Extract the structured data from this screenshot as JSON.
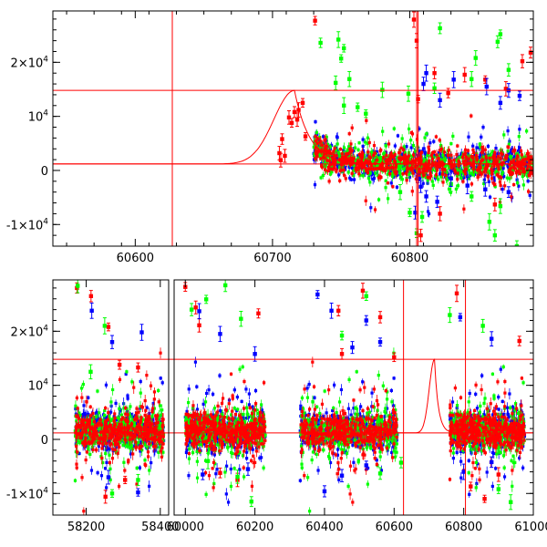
{
  "chart_data": [
    {
      "type": "scatter",
      "panel": "top",
      "title": "",
      "xlabel": "",
      "ylabel": "",
      "xlim": [
        60540,
        60890
      ],
      "ylim": [
        -14000,
        29500
      ],
      "x_ticks": [
        60600,
        60700,
        60800
      ],
      "x_tick_labels": [
        "60600",
        "60700",
        "60800"
      ],
      "y_ticks": [
        {
          "value": -10000,
          "mantissa": "-1×10",
          "exp": "4"
        },
        {
          "value": 0,
          "mantissa": "0",
          "exp": ""
        },
        {
          "value": 10000,
          "mantissa": "10",
          "exp": "4"
        },
        {
          "value": 20000,
          "mantissa": "2×10",
          "exp": "4"
        }
      ],
      "series_colors": {
        "red": "#ff0000",
        "green": "#00ff00",
        "blue": "#0000ff"
      },
      "reference_lines": {
        "horizontal": [
          1200,
          14800
        ],
        "vertical": [
          60627,
          60805,
          60806
        ]
      },
      "model_curve": {
        "baseline": 1200,
        "peak": 14800,
        "peak_x": 60716,
        "rise_width": 15,
        "decay_tau": 11
      },
      "series": [
        {
          "name": "red",
          "color": "#ff0000",
          "points": [
            [
              60705,
              3200
            ],
            [
              60706,
              1900
            ],
            [
              60707,
              5800
            ],
            [
              60709,
              2700
            ],
            [
              60712,
              9800
            ],
            [
              60714,
              8800
            ],
            [
              60716,
              10800
            ],
            [
              60718,
              9400
            ],
            [
              60719,
              11200
            ],
            [
              60722,
              12500
            ],
            [
              60724,
              6300
            ],
            [
              60731,
              27700
            ],
            [
              60803,
              27900
            ],
            [
              60805,
              24000
            ],
            [
              60806,
              13200
            ],
            [
              60818,
              18000
            ],
            [
              60828,
              14300
            ],
            [
              60840,
              17700
            ],
            [
              60855,
              16800
            ],
            [
              60870,
              15100
            ],
            [
              60882,
              20200
            ],
            [
              60888,
              21800
            ],
            [
              60822,
              -8000
            ],
            [
              60808,
              -12000
            ],
            [
              60862,
              -6300
            ]
          ]
        },
        {
          "name": "green",
          "color": "#00ff00",
          "points": [
            [
              60735,
              23600
            ],
            [
              60748,
              24200
            ],
            [
              60752,
              22600
            ],
            [
              60750,
              20700
            ],
            [
              60746,
              16200
            ],
            [
              60756,
              16900
            ],
            [
              60752,
              12000
            ],
            [
              60762,
              11700
            ],
            [
              60768,
              10500
            ],
            [
              60780,
              14900
            ],
            [
              60799,
              14200
            ],
            [
              60818,
              15200
            ],
            [
              60822,
              26300
            ],
            [
              60845,
              16900
            ],
            [
              60848,
              20800
            ],
            [
              60864,
              23800
            ],
            [
              60866,
              25200
            ],
            [
              60872,
              18600
            ],
            [
              60793,
              -4000
            ],
            [
              60800,
              -7800
            ],
            [
              60830,
              -2500
            ],
            [
              60845,
              -4800
            ],
            [
              60858,
              -9500
            ],
            [
              60866,
              -6600
            ],
            [
              60862,
              -12000
            ],
            [
              60878,
              -14000
            ],
            [
              60809,
              -8600
            ],
            [
              60805,
              -11600
            ]
          ]
        },
        {
          "name": "blue",
          "color": "#0000ff",
          "points": [
            [
              60810,
              16000
            ],
            [
              60812,
              18000
            ],
            [
              60822,
              13000
            ],
            [
              60832,
              16800
            ],
            [
              60856,
              15500
            ],
            [
              60866,
              12500
            ],
            [
              60872,
              14800
            ],
            [
              60880,
              13800
            ],
            [
              60806,
              -1500
            ],
            [
              60808,
              -3000
            ],
            [
              60812,
              -4800
            ],
            [
              60820,
              -5800
            ],
            [
              60830,
              -1500
            ],
            [
              60842,
              -2800
            ],
            [
              60855,
              -3500
            ],
            [
              60872,
              -4000
            ],
            [
              60804,
              -7800
            ]
          ]
        }
      ]
    },
    {
      "type": "scatter",
      "panel": "bottom",
      "title": "",
      "xlabel": "",
      "ylabel": "",
      "xlim": [
        58110,
        61000
      ],
      "ylim": [
        -14000,
        29500
      ],
      "axis_break": {
        "left_segment": [
          58110,
          58430
        ],
        "right_segment": [
          59960,
          61000
        ]
      },
      "x_ticks": [
        58200,
        58400,
        60000,
        60200,
        60400,
        60600,
        60800,
        61000
      ],
      "x_tick_labels": [
        "58200",
        "58400",
        "60000",
        "60200",
        "60400",
        "60600",
        "60800",
        "61000"
      ],
      "y_ticks": [
        {
          "value": -10000,
          "mantissa": "-1×10",
          "exp": "4"
        },
        {
          "value": 0,
          "mantissa": "0",
          "exp": ""
        },
        {
          "value": 10000,
          "mantissa": "10",
          "exp": "4"
        },
        {
          "value": 20000,
          "mantissa": "2×10",
          "exp": "4"
        }
      ],
      "series_colors": {
        "red": "#ff0000",
        "green": "#00ff00",
        "blue": "#0000ff"
      },
      "reference_lines": {
        "horizontal": [
          1200,
          14800
        ],
        "vertical": [
          60627,
          60805
        ]
      },
      "model_curve": {
        "baseline": 1200,
        "peak": 14800,
        "peak_x": 60716,
        "rise_width": 15,
        "decay_tau": 11
      },
      "seasons": [
        [
          58170,
          58410
        ],
        [
          60000,
          60230
        ],
        [
          60330,
          60610
        ],
        [
          60760,
          60975
        ]
      ],
      "series": [
        {
          "name": "red",
          "color": "#ff0000",
          "points": [
            [
              58213,
              26500
            ],
            [
              58260,
              20800
            ],
            [
              58290,
              13800
            ],
            [
              58340,
              13300
            ],
            [
              58175,
              28000
            ],
            [
              58252,
              -10600
            ],
            [
              58305,
              -7500
            ],
            [
              60000,
              28200
            ],
            [
              60030,
              24400
            ],
            [
              60040,
              21100
            ],
            [
              60100,
              -6200
            ],
            [
              60150,
              -7500
            ],
            [
              60210,
              23300
            ],
            [
              60440,
              23800
            ],
            [
              60450,
              15800
            ],
            [
              60510,
              27500
            ],
            [
              60560,
              22600
            ],
            [
              60600,
              15200
            ],
            [
              60780,
              27000
            ],
            [
              60820,
              -8700
            ],
            [
              60860,
              -11000
            ],
            [
              60900,
              -6500
            ],
            [
              60960,
              18200
            ]
          ]
        },
        {
          "name": "green",
          "color": "#00ff00",
          "points": [
            [
              58177,
              28400
            ],
            [
              58270,
              -10000
            ],
            [
              58250,
              21000
            ],
            [
              58340,
              -7500
            ],
            [
              58212,
              12500
            ],
            [
              60018,
              24000
            ],
            [
              60060,
              25900
            ],
            [
              60115,
              28500
            ],
            [
              60160,
              22300
            ],
            [
              60065,
              -4000
            ],
            [
              60150,
              -6900
            ],
            [
              60190,
              -11500
            ],
            [
              60450,
              19200
            ],
            [
              60520,
              26500
            ],
            [
              60560,
              -6300
            ],
            [
              60620,
              -4300
            ],
            [
              60760,
              23000
            ],
            [
              60855,
              21000
            ],
            [
              60900,
              -9200
            ],
            [
              60935,
              -11600
            ]
          ]
        },
        {
          "name": "blue",
          "color": "#0000ff",
          "points": [
            [
              58215,
              23800
            ],
            [
              58270,
              18000
            ],
            [
              58350,
              19800
            ],
            [
              58260,
              -7000
            ],
            [
              58340,
              -9800
            ],
            [
              60040,
              23700
            ],
            [
              60100,
              19500
            ],
            [
              60200,
              15800
            ],
            [
              60050,
              -6500
            ],
            [
              60180,
              -5500
            ],
            [
              60380,
              26800
            ],
            [
              60420,
              23800
            ],
            [
              60480,
              17000
            ],
            [
              60520,
              22000
            ],
            [
              60560,
              18000
            ],
            [
              60400,
              -9600
            ],
            [
              60450,
              -6700
            ],
            [
              60520,
              -4800
            ],
            [
              60790,
              22600
            ],
            [
              60880,
              18600
            ],
            [
              60800,
              -6000
            ],
            [
              60880,
              -4200
            ]
          ]
        }
      ]
    }
  ]
}
